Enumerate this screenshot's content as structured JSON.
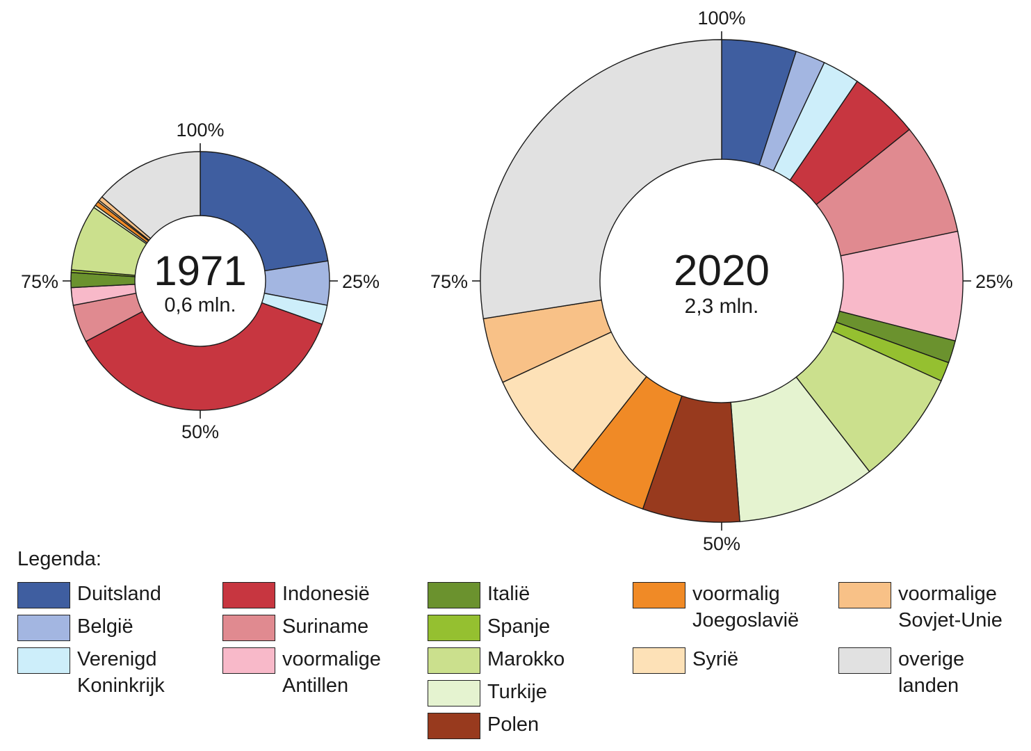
{
  "chart_data": [
    {
      "type": "donut",
      "year": "1971",
      "total_label": "0,6 mln.",
      "axis_labels": [
        "100%",
        "25%",
        "50%",
        "75%"
      ],
      "slices": [
        {
          "country": "Duitsland",
          "value": 20.5
        },
        {
          "country": "België",
          "value": 5.0
        },
        {
          "country": "Verenigd Koninkrijk",
          "value": 2.2
        },
        {
          "country": "Indonesië",
          "value": 33.5
        },
        {
          "country": "Suriname",
          "value": 4.3
        },
        {
          "country": "voormalige Antillen",
          "value": 2.0
        },
        {
          "country": "Italië",
          "value": 1.7
        },
        {
          "country": "Spanje",
          "value": 0.3
        },
        {
          "country": "Marokko",
          "value": 7.5
        },
        {
          "country": "Turkije",
          "value": 0.3
        },
        {
          "country": "Polen",
          "value": 0.0
        },
        {
          "country": "voormalig Joegoslavië",
          "value": 0.5
        },
        {
          "country": "Syrië",
          "value": 0.2
        },
        {
          "country": "voormalige Sovjet-Unie",
          "value": 0.5
        },
        {
          "country": "overige landen",
          "value": 12.5
        }
      ]
    },
    {
      "type": "donut",
      "year": "2020",
      "total_label": "2,3 mln.",
      "axis_labels": [
        "100%",
        "25%",
        "50%",
        "75%"
      ],
      "slices": [
        {
          "country": "Duitsland",
          "value": 5.0
        },
        {
          "country": "België",
          "value": 2.0
        },
        {
          "country": "Verenigd Koninkrijk",
          "value": 2.5
        },
        {
          "country": "Indonesië",
          "value": 4.7
        },
        {
          "country": "Suriname",
          "value": 7.5
        },
        {
          "country": "voormalige Antillen",
          "value": 7.3
        },
        {
          "country": "Italië",
          "value": 1.5
        },
        {
          "country": "Spanje",
          "value": 1.3
        },
        {
          "country": "Marokko",
          "value": 7.7
        },
        {
          "country": "Turkije",
          "value": 9.3
        },
        {
          "country": "Polen",
          "value": 6.5
        },
        {
          "country": "voormalig Joegoslavië",
          "value": 5.3
        },
        {
          "country": "Syrië",
          "value": 7.5
        },
        {
          "country": "voormalige Sovjet-Unie",
          "value": 4.4
        },
        {
          "country": "overige landen",
          "value": 27.5
        }
      ]
    }
  ],
  "legend": {
    "title": "Legenda:",
    "items": [
      {
        "label": "Duitsland",
        "color": "#3f5ea0"
      },
      {
        "label": "België",
        "color": "#a3b6e1"
      },
      {
        "label": "Verenigd\nKoninkrijk",
        "color": "#cdeefa"
      },
      {
        "label": "Indonesië",
        "color": "#c73640"
      },
      {
        "label": "Suriname",
        "color": "#e08a90"
      },
      {
        "label": "voormalige\nAntillen",
        "color": "#f8b9c9"
      },
      {
        "label": "Italië",
        "color": "#6b922e"
      },
      {
        "label": "Spanje",
        "color": "#95c030"
      },
      {
        "label": "Marokko",
        "color": "#cbe08d"
      },
      {
        "label": "Turkije",
        "color": "#e5f3d0"
      },
      {
        "label": "Polen",
        "color": "#983a1e"
      },
      {
        "label": "voormalig\nJoegoslavië",
        "color": "#f08a26"
      },
      {
        "label": "Syrië",
        "color": "#fde1b7"
      },
      {
        "label": "voormalige\nSovjet-Unie",
        "color": "#f8c187"
      },
      {
        "label": "overige\nlanden",
        "color": "#e1e1e1"
      }
    ]
  }
}
